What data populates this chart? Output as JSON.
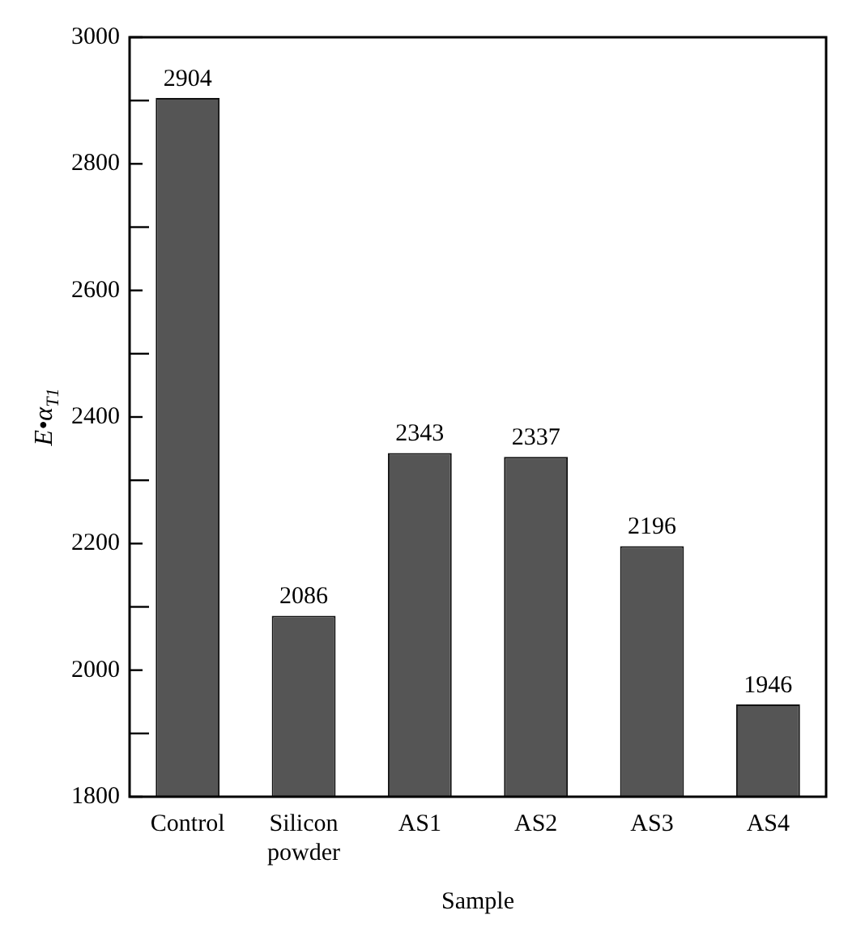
{
  "chart_data": {
    "type": "bar",
    "xlabel": "Sample",
    "ylabel": "E•α$_{T1}$",
    "categories": [
      "Control",
      "Silicon powder",
      "AS1",
      "AS2",
      "AS3",
      "AS4"
    ],
    "values": [
      2904,
      2086,
      2343,
      2337,
      2196,
      1946
    ],
    "color": "#555555",
    "ylim": [
      1800,
      3000
    ],
    "yticks": [
      1800,
      {
        "value": 1900,
        "label": null
      },
      2000,
      {
        "value": 2100,
        "label": null
      },
      2200,
      {
        "value": 2300,
        "label": null
      },
      2400,
      {
        "value": 2500,
        "label": null
      },
      2600,
      {
        "value": 2700,
        "label": null
      },
      2800,
      {
        "value": 2900,
        "label": null
      },
      3000
    ],
    "data_labels": true,
    "grid": false,
    "legend": false
  }
}
